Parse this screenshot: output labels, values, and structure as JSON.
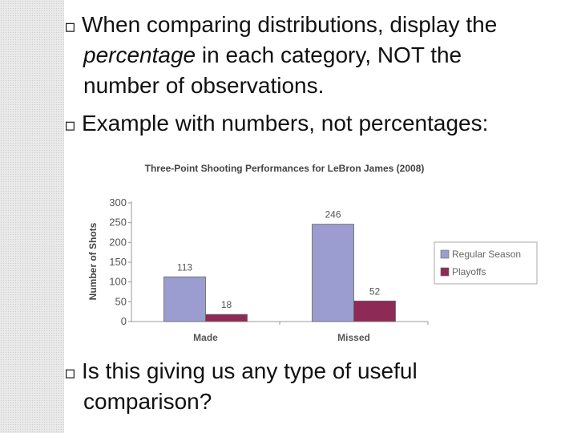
{
  "slide": {
    "bullet_glyph": "▫",
    "bullet1": {
      "part1": "When comparing distributions, display the",
      "part2_em": "percentage",
      "part2_rest": " in each category, NOT the",
      "part3": "number of observations."
    },
    "bullet2": "Example with numbers, not percentages:",
    "bullet3": {
      "line1": "Is this giving us any type of useful",
      "line2": "comparison?"
    }
  },
  "chart_data": {
    "type": "bar",
    "title": "Three-Point Shooting Performances for LeBron James (2008)",
    "xlabel": "",
    "ylabel": "Number of Shots",
    "categories": [
      "Made",
      "Missed"
    ],
    "series": [
      {
        "name": "Regular Season",
        "values": [
          113,
          246
        ],
        "color": "#9b9dd0"
      },
      {
        "name": "Playoffs",
        "values": [
          18,
          52
        ],
        "color": "#8e2a56"
      }
    ],
    "ylim": [
      0,
      300
    ],
    "yticks": [
      0,
      50,
      100,
      150,
      200,
      250,
      300
    ],
    "legend_position": "right",
    "grid": false
  }
}
